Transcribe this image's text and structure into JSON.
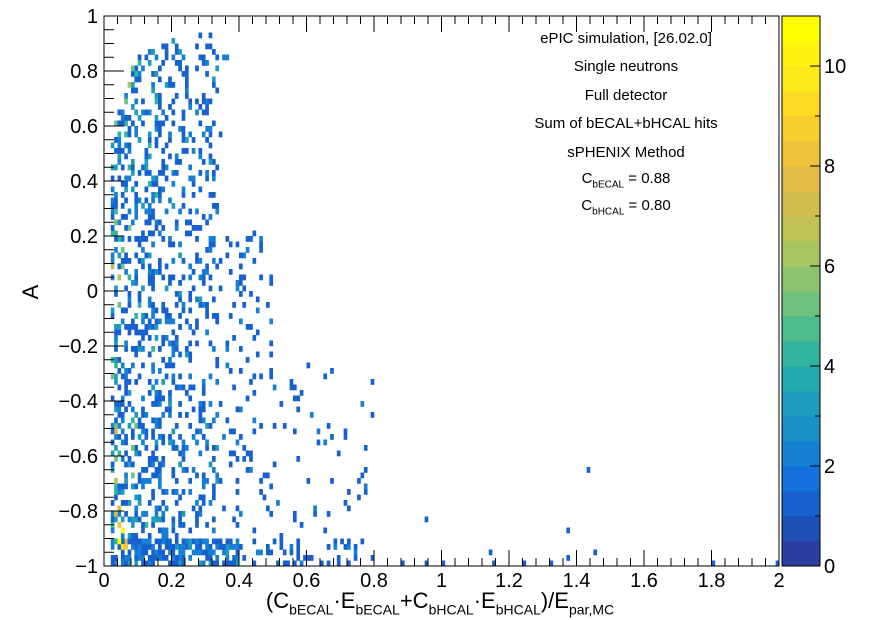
{
  "chart_data": {
    "type": "heatmap",
    "title": "",
    "x_axis": {
      "label_parts": [
        {
          "text": "(C",
          "sub": false
        },
        {
          "text": "bECAL",
          "sub": true
        },
        {
          "text": "·E",
          "sub": false
        },
        {
          "text": "bECAL",
          "sub": true
        },
        {
          "text": "+C",
          "sub": false
        },
        {
          "text": "bHCAL",
          "sub": true
        },
        {
          "text": "·E",
          "sub": false
        },
        {
          "text": "bHCAL",
          "sub": true
        },
        {
          "text": ")/E",
          "sub": false
        },
        {
          "text": "par,MC",
          "sub": true
        }
      ],
      "range": [
        0,
        2
      ],
      "ticks": [
        0,
        0.2,
        0.4,
        0.6,
        0.8,
        1,
        1.2,
        1.4,
        1.6,
        1.8,
        2
      ],
      "tick_labels": [
        "0",
        "0.2",
        "0.4",
        "0.6",
        "0.8",
        "1",
        "1.2",
        "1.4",
        "1.6",
        "1.8",
        "2"
      ]
    },
    "y_axis": {
      "label": "A",
      "range": [
        -1,
        1
      ],
      "ticks": [
        -1,
        -0.8,
        -0.6,
        -0.4,
        -0.2,
        0,
        0.2,
        0.4,
        0.6,
        0.8,
        1
      ],
      "tick_labels": [
        "−1",
        "−0.8",
        "−0.6",
        "−0.4",
        "−0.2",
        "0",
        "0.2",
        "0.4",
        "0.6",
        "0.8",
        "1"
      ]
    },
    "z_axis": {
      "range": [
        0,
        11
      ],
      "ticks": [
        0,
        2,
        4,
        6,
        8,
        10
      ],
      "tick_labels": [
        "0",
        "2",
        "4",
        "6",
        "8",
        "10"
      ],
      "palette": [
        "#2d3f9e",
        "#1f4fb7",
        "#1660d0",
        "#1470dc",
        "#1680d4",
        "#1a8fc8",
        "#1d9dbb",
        "#22aaaf",
        "#33b4a0",
        "#4fbc8e",
        "#6ec27e",
        "#8cc56e",
        "#a8c560",
        "#c1c255",
        "#d3bd4c",
        "#e2bc44",
        "#f0c23a",
        "#f7cd2e",
        "#fbdc22",
        "#fde81a",
        "#fff30f",
        "#ffff00"
      ]
    },
    "binning": {
      "nx": 200,
      "ny": 100
    },
    "grid": false,
    "legend": "none",
    "annotations": [
      {
        "parts": [
          {
            "text": "ePIC simulation, [26.02.0]",
            "sub": false
          }
        ]
      },
      {
        "parts": [
          {
            "text": "Single neutrons",
            "sub": false
          }
        ]
      },
      {
        "parts": [
          {
            "text": "Full detector",
            "sub": false
          }
        ]
      },
      {
        "parts": [
          {
            "text": "Sum of bECAL+bHCAL hits",
            "sub": false
          }
        ]
      },
      {
        "parts": [
          {
            "text": "sPHENIX Method",
            "sub": false
          }
        ]
      },
      {
        "parts": [
          {
            "text": "C",
            "sub": false
          },
          {
            "text": "bECAL",
            "sub": true
          },
          {
            "text": " = 0.88",
            "sub": false
          }
        ]
      },
      {
        "parts": [
          {
            "text": "C",
            "sub": false
          },
          {
            "text": "bHCAL",
            "sub": true
          },
          {
            "text": " = 0.80",
            "sub": false
          }
        ]
      }
    ],
    "distribution": {
      "seed": 20260204,
      "bands": [
        {
          "x": [
            0.02,
            0.05
          ],
          "y": [
            -0.92,
            0.76
          ],
          "n": 46,
          "z": [
            1,
            7
          ]
        },
        {
          "x": [
            0.05,
            0.1
          ],
          "y": [
            -0.92,
            0.84
          ],
          "n": 40,
          "z": [
            1,
            5
          ]
        },
        {
          "x": [
            0.1,
            0.16
          ],
          "y": [
            -0.9,
            0.88
          ],
          "n": 35,
          "z": [
            1,
            4
          ]
        },
        {
          "x": [
            0.16,
            0.24
          ],
          "y": [
            -0.9,
            0.9
          ],
          "n": 30,
          "z": [
            1,
            3
          ]
        },
        {
          "x": [
            0.24,
            0.34
          ],
          "y": [
            -0.88,
            0.9
          ],
          "n": 22,
          "z": [
            1,
            3
          ]
        },
        {
          "x": [
            0.34,
            0.5
          ],
          "y": [
            -0.88,
            0.2
          ],
          "n": 10,
          "z": [
            1,
            2
          ]
        },
        {
          "x": [
            0.5,
            0.8
          ],
          "y": [
            -0.95,
            -0.3
          ],
          "n": 4,
          "z": [
            1,
            2
          ]
        },
        {
          "x": [
            0.02,
            0.4
          ],
          "y": [
            -0.995,
            -0.9
          ],
          "n": 110,
          "z": [
            1,
            3
          ]
        },
        {
          "x": [
            0.4,
            0.8
          ],
          "y": [
            -0.995,
            -0.9
          ],
          "n": 22,
          "z": [
            1,
            2
          ]
        }
      ],
      "hotspots": [
        {
          "x": 0.045,
          "y": -0.9,
          "z": 11
        },
        {
          "x": 0.05,
          "y": -0.88,
          "z": 10
        },
        {
          "x": 0.055,
          "y": -0.92,
          "z": 9
        },
        {
          "x": 0.04,
          "y": -0.86,
          "z": 8
        },
        {
          "x": 0.06,
          "y": -0.94,
          "z": 8
        },
        {
          "x": 0.035,
          "y": -0.82,
          "z": 7
        },
        {
          "x": 0.04,
          "y": -0.78,
          "z": 7
        },
        {
          "x": 0.065,
          "y": -0.9,
          "z": 7
        },
        {
          "x": 0.03,
          "y": -0.7,
          "z": 6
        },
        {
          "x": 0.035,
          "y": -0.62,
          "z": 5
        },
        {
          "x": 0.03,
          "y": -0.5,
          "z": 5
        },
        {
          "x": 0.07,
          "y": 0.74,
          "z": 6
        },
        {
          "x": 0.065,
          "y": 0.68,
          "z": 5
        },
        {
          "x": 0.08,
          "y": 0.8,
          "z": 5
        },
        {
          "x": 0.09,
          "y": 0.78,
          "z": 4
        },
        {
          "x": 0.1,
          "y": 0.84,
          "z": 4
        },
        {
          "x": 0.14,
          "y": 0.88,
          "z": 3
        },
        {
          "x": 0.2,
          "y": 0.9,
          "z": 3
        }
      ],
      "outliers": [
        {
          "x": 0.28,
          "y": 0.92,
          "z": 1
        },
        {
          "x": 0.31,
          "y": 0.92,
          "z": 1
        },
        {
          "x": 0.35,
          "y": 0.86,
          "z": 2
        },
        {
          "x": 0.36,
          "y": 0.86,
          "z": 2
        },
        {
          "x": 0.34,
          "y": 0.56,
          "z": 1
        },
        {
          "x": 0.44,
          "y": 0.2,
          "z": 1
        },
        {
          "x": 0.46,
          "y": 0.14,
          "z": 1
        },
        {
          "x": 0.4,
          "y": 0.12,
          "z": 1
        },
        {
          "x": 0.4,
          "y": 0.02,
          "z": 1
        },
        {
          "x": 0.6,
          "y": -0.28,
          "z": 1
        },
        {
          "x": 0.67,
          "y": -0.3,
          "z": 1
        },
        {
          "x": 0.55,
          "y": -0.36,
          "z": 1
        },
        {
          "x": 0.58,
          "y": -0.4,
          "z": 1
        },
        {
          "x": 0.52,
          "y": -0.42,
          "z": 1
        },
        {
          "x": 0.61,
          "y": -0.46,
          "z": 1
        },
        {
          "x": 0.57,
          "y": -0.52,
          "z": 1
        },
        {
          "x": 0.63,
          "y": -0.54,
          "z": 1
        },
        {
          "x": 0.58,
          "y": -0.62,
          "z": 1
        },
        {
          "x": 0.5,
          "y": -0.64,
          "z": 1
        },
        {
          "x": 0.6,
          "y": -0.7,
          "z": 1
        },
        {
          "x": 0.56,
          "y": -0.8,
          "z": 1
        },
        {
          "x": 0.66,
          "y": -0.82,
          "z": 1
        },
        {
          "x": 0.59,
          "y": -0.86,
          "z": 1
        },
        {
          "x": 0.7,
          "y": -0.9,
          "z": 1
        },
        {
          "x": 0.95,
          "y": -0.84,
          "z": 1
        },
        {
          "x": 1.43,
          "y": -0.65,
          "z": 1
        },
        {
          "x": 1.37,
          "y": -0.88,
          "z": 1
        },
        {
          "x": 1.15,
          "y": -0.96,
          "z": 1
        },
        {
          "x": 1.37,
          "y": -0.97,
          "z": 1
        },
        {
          "x": 1.45,
          "y": -0.96,
          "z": 1
        },
        {
          "x": 1.0,
          "y": -0.995,
          "z": 1
        },
        {
          "x": 1.16,
          "y": -0.995,
          "z": 1
        },
        {
          "x": 0.95,
          "y": -0.995,
          "z": 1
        },
        {
          "x": 1.24,
          "y": -0.995,
          "z": 1
        },
        {
          "x": 1.32,
          "y": -0.995,
          "z": 1
        },
        {
          "x": 1.8,
          "y": -0.995,
          "z": 1
        },
        {
          "x": 1.99,
          "y": -0.995,
          "z": 1
        },
        {
          "x": 0.88,
          "y": -0.995,
          "z": 1
        }
      ]
    }
  }
}
